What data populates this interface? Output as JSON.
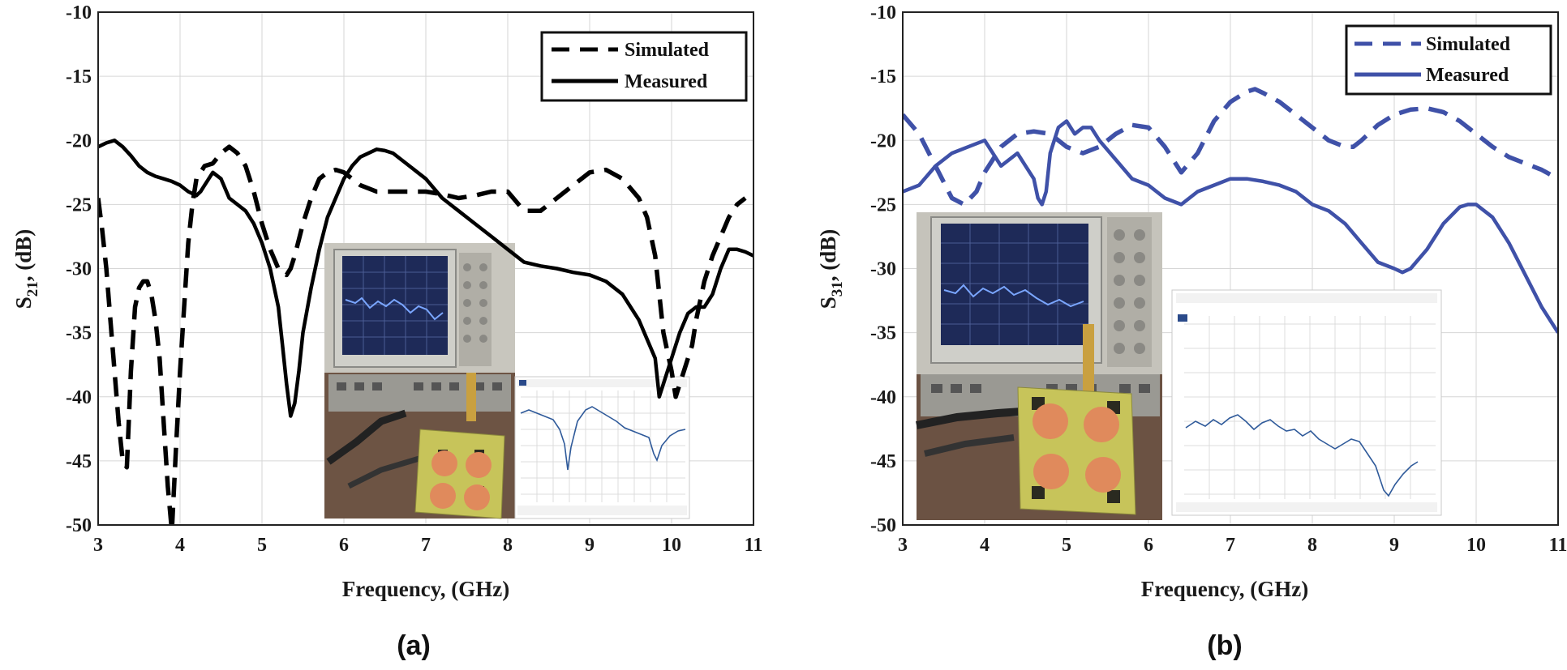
{
  "chart_data": [
    {
      "type": "line",
      "panel_label": "(a)",
      "xlabel": "Frequency, (GHz)",
      "ylabel_main": "S",
      "ylabel_sub": "21",
      "ylabel_rest": ", (dB)",
      "xlim": [
        3,
        11
      ],
      "ylim": [
        -50,
        -10
      ],
      "xticks": [
        "3",
        "4",
        "5",
        "6",
        "7",
        "8",
        "9",
        "10",
        "11"
      ],
      "yticks": [
        "-10",
        "-15",
        "-20",
        "-25",
        "-30",
        "-35",
        "-40",
        "-45",
        "-50"
      ],
      "grid": true,
      "legend_position": "top-right",
      "color": "#000000",
      "series": [
        {
          "name": "Simulated",
          "style": "dashed",
          "x": [
            3.0,
            3.05,
            3.1,
            3.15,
            3.2,
            3.25,
            3.3,
            3.35,
            3.4,
            3.45,
            3.5,
            3.55,
            3.6,
            3.65,
            3.7,
            3.75,
            3.8,
            3.85,
            3.9,
            3.95,
            4.0,
            4.05,
            4.1,
            4.15,
            4.2,
            4.3,
            4.4,
            4.5,
            4.6,
            4.7,
            4.8,
            4.9,
            5.0,
            5.1,
            5.2,
            5.3,
            5.35,
            5.4,
            5.5,
            5.6,
            5.7,
            5.8,
            5.9,
            6.0,
            6.2,
            6.4,
            6.6,
            6.8,
            7.0,
            7.2,
            7.4,
            7.6,
            7.8,
            8.0,
            8.2,
            8.4,
            8.6,
            8.8,
            9.0,
            9.2,
            9.4,
            9.6,
            9.7,
            9.8,
            9.9,
            10.0,
            10.05,
            10.1,
            10.15,
            10.2,
            10.25,
            10.3,
            10.4,
            10.5,
            10.6,
            10.7,
            10.8,
            10.9
          ],
          "y": [
            -24.5,
            -27,
            -30,
            -34,
            -38,
            -42,
            -45,
            -45.5,
            -38,
            -33,
            -31.5,
            -31,
            -31,
            -32,
            -34,
            -37,
            -42,
            -47,
            -50.5,
            -44,
            -38,
            -33,
            -28,
            -25,
            -23,
            -22,
            -21.8,
            -21,
            -20.5,
            -21,
            -22,
            -24,
            -26.5,
            -28.5,
            -30,
            -30.5,
            -30,
            -29,
            -26.5,
            -24.5,
            -23,
            -22.5,
            -22.3,
            -22.5,
            -23.5,
            -24,
            -24,
            -24,
            -24,
            -24.2,
            -24.5,
            -24.3,
            -24,
            -24,
            -25.5,
            -25.5,
            -24.5,
            -23.5,
            -22.5,
            -22.3,
            -23,
            -24.5,
            -26,
            -29,
            -35,
            -38,
            -40,
            -39,
            -38,
            -37,
            -36,
            -34,
            -31,
            -29,
            -27.5,
            -26,
            -25,
            -24.5
          ]
        },
        {
          "name": "Measured",
          "style": "solid",
          "x": [
            3.0,
            3.1,
            3.2,
            3.3,
            3.4,
            3.5,
            3.6,
            3.7,
            3.8,
            3.9,
            4.0,
            4.1,
            4.2,
            4.25,
            4.3,
            4.4,
            4.5,
            4.6,
            4.7,
            4.8,
            4.9,
            5.0,
            5.1,
            5.2,
            5.25,
            5.3,
            5.35,
            5.4,
            5.45,
            5.5,
            5.6,
            5.7,
            5.8,
            5.9,
            6.0,
            6.1,
            6.2,
            6.3,
            6.4,
            6.5,
            6.6,
            6.7,
            6.8,
            6.9,
            7.0,
            7.2,
            7.4,
            7.6,
            7.8,
            8.0,
            8.2,
            8.4,
            8.6,
            8.8,
            9.0,
            9.2,
            9.4,
            9.5,
            9.6,
            9.7,
            9.8,
            9.85,
            9.9,
            10.0,
            10.1,
            10.2,
            10.3,
            10.4,
            10.5,
            10.6,
            10.7,
            10.8,
            10.9,
            11.0
          ],
          "y": [
            -20.5,
            -20.2,
            -20,
            -20.5,
            -21.2,
            -22,
            -22.5,
            -22.8,
            -23,
            -23.2,
            -23.5,
            -24,
            -24.3,
            -24,
            -23.5,
            -22.5,
            -23,
            -24.5,
            -25,
            -25.5,
            -26.5,
            -28,
            -30,
            -33,
            -36,
            -39,
            -41.5,
            -40.5,
            -38,
            -35,
            -31.5,
            -28.5,
            -26,
            -24.5,
            -23,
            -22,
            -21.3,
            -21,
            -20.7,
            -20.8,
            -21,
            -21.5,
            -22,
            -22.5,
            -23,
            -24.5,
            -25.5,
            -26.5,
            -27.5,
            -28.5,
            -29.5,
            -29.8,
            -30,
            -30.3,
            -30.5,
            -31,
            -32,
            -33,
            -34,
            -35.5,
            -37,
            -40,
            -39,
            -37,
            -35,
            -33.5,
            -33,
            -33,
            -32,
            -30,
            -28.5,
            -28.5,
            -28.7,
            -29
          ]
        }
      ]
    },
    {
      "type": "line",
      "panel_label": "(b)",
      "xlabel": "Frequency, (GHz)",
      "ylabel_main": "S",
      "ylabel_sub": "31",
      "ylabel_rest": ", (dB)",
      "xlim": [
        3,
        11
      ],
      "ylim": [
        -50,
        -10
      ],
      "xticks": [
        "3",
        "4",
        "5",
        "6",
        "7",
        "8",
        "9",
        "10",
        "11"
      ],
      "yticks": [
        "-10",
        "-15",
        "-20",
        "-25",
        "-30",
        "-35",
        "-40",
        "-45",
        "-50"
      ],
      "grid": true,
      "legend_position": "top-right",
      "color": "#3f51a8",
      "series": [
        {
          "name": "Simulated",
          "style": "dashed",
          "x": [
            3.0,
            3.2,
            3.4,
            3.6,
            3.75,
            3.9,
            4.0,
            4.2,
            4.4,
            4.6,
            4.8,
            5.0,
            5.2,
            5.4,
            5.6,
            5.8,
            6.0,
            6.2,
            6.4,
            6.6,
            6.8,
            7.0,
            7.2,
            7.3,
            7.4,
            7.6,
            7.8,
            8.0,
            8.2,
            8.4,
            8.5,
            8.6,
            8.8,
            9.0,
            9.2,
            9.4,
            9.6,
            9.8,
            10.0,
            10.2,
            10.4,
            10.6,
            10.8,
            11.0
          ],
          "y": [
            -18,
            -19.5,
            -22,
            -24.5,
            -25,
            -24,
            -22.5,
            -20.5,
            -19.5,
            -19.3,
            -19.5,
            -20.5,
            -21,
            -20.5,
            -19.5,
            -18.8,
            -19,
            -20.5,
            -22.5,
            -21,
            -18.5,
            -17,
            -16.2,
            -16,
            -16.3,
            -17,
            -18,
            -19,
            -20,
            -20.5,
            -20.5,
            -20,
            -18.8,
            -18,
            -17.6,
            -17.5,
            -17.8,
            -18.5,
            -19.5,
            -20.5,
            -21.3,
            -21.8,
            -22.3,
            -23
          ]
        },
        {
          "name": "Measured",
          "style": "solid",
          "x": [
            3.0,
            3.2,
            3.4,
            3.6,
            3.8,
            4.0,
            4.1,
            4.2,
            4.3,
            4.4,
            4.5,
            4.6,
            4.65,
            4.7,
            4.75,
            4.8,
            4.9,
            5.0,
            5.1,
            5.2,
            5.3,
            5.4,
            5.6,
            5.8,
            6.0,
            6.2,
            6.4,
            6.6,
            6.8,
            7.0,
            7.2,
            7.4,
            7.6,
            7.8,
            8.0,
            8.2,
            8.4,
            8.6,
            8.8,
            9.0,
            9.1,
            9.2,
            9.4,
            9.6,
            9.8,
            9.9,
            10.0,
            10.2,
            10.4,
            10.6,
            10.8,
            11.0
          ],
          "y": [
            -24,
            -23.5,
            -22,
            -21,
            -20.5,
            -20,
            -21,
            -22,
            -21.5,
            -21,
            -22,
            -23,
            -24.5,
            -25,
            -24,
            -21,
            -19,
            -18.5,
            -19.5,
            -19,
            -19,
            -20,
            -21.5,
            -23,
            -23.5,
            -24.5,
            -25,
            -24,
            -23.5,
            -23,
            -23,
            -23.2,
            -23.5,
            -24,
            -25,
            -25.5,
            -26.5,
            -28,
            -29.5,
            -30,
            -30.3,
            -30,
            -28.5,
            -26.5,
            -25.2,
            -25,
            -25,
            -26,
            -28,
            -30.5,
            -33,
            -35
          ]
        }
      ]
    }
  ]
}
